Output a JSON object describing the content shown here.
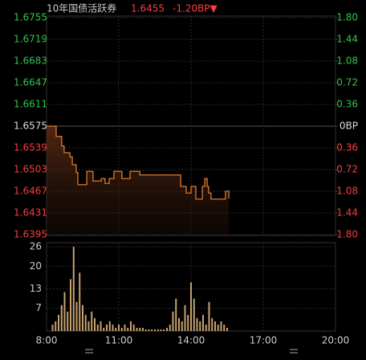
{
  "chart_data": [
    {
      "type": "line",
      "title": "10年国债活跃券",
      "last": "1.6455",
      "change": "-1.20BP▼",
      "x": [
        8.0,
        8.33,
        8.4,
        8.57,
        8.63,
        8.73,
        8.97,
        9.07,
        9.23,
        9.3,
        9.63,
        9.67,
        9.87,
        9.93,
        10.27,
        10.43,
        10.6,
        10.73,
        10.8,
        11.07,
        11.13,
        11.4,
        11.47,
        11.8,
        11.87,
        13.47,
        13.57,
        13.8,
        13.93,
        14.0,
        14.2,
        14.4,
        14.47,
        14.57,
        14.67,
        14.73,
        14.83,
        15.33,
        15.43,
        15.57
      ],
      "values": [
        1.6575,
        1.6575,
        1.6558,
        1.6558,
        1.6542,
        1.6531,
        1.6524,
        1.6511,
        1.6498,
        1.6478,
        1.6478,
        1.65,
        1.65,
        1.6484,
        1.6488,
        1.648,
        1.6488,
        1.6488,
        1.65,
        1.65,
        1.6488,
        1.6488,
        1.65,
        1.65,
        1.6494,
        1.6494,
        1.6475,
        1.6464,
        1.6464,
        1.6475,
        1.6454,
        1.6454,
        1.6475,
        1.6488,
        1.6475,
        1.6464,
        1.6454,
        1.6454,
        1.6467,
        1.6455
      ],
      "color": "#e07a30",
      "base": 1.6575,
      "xlim": [
        8,
        20
      ],
      "ylim": [
        1.6395,
        1.6755
      ],
      "yticks": [
        1.6755,
        1.6719,
        1.6683,
        1.6647,
        1.6611,
        1.6575,
        1.6539,
        1.6503,
        1.6467,
        1.6431,
        1.6395
      ],
      "y2lim": [
        -1.8,
        1.8
      ],
      "y2ticks": [
        {
          "value": 1.8,
          "label": "1.80"
        },
        {
          "value": 1.44,
          "label": "1.44"
        },
        {
          "value": 1.08,
          "label": "1.08"
        },
        {
          "value": 0.72,
          "label": "0.72"
        },
        {
          "value": 0.36,
          "label": "0.36"
        },
        {
          "value": 0,
          "label": "0BP"
        },
        {
          "value": -0.36,
          "label": "0.36"
        },
        {
          "value": -0.72,
          "label": "0.72"
        },
        {
          "value": -1.08,
          "label": "1.08"
        },
        {
          "value": -1.44,
          "label": "1.44"
        },
        {
          "value": -1.8,
          "label": "1.80"
        }
      ],
      "grid": true
    },
    {
      "type": "bar",
      "x": [
        8.25,
        8.375,
        8.5,
        8.625,
        8.75,
        8.875,
        9.0,
        9.125,
        9.25,
        9.375,
        9.5,
        9.625,
        9.75,
        9.875,
        10.0,
        10.125,
        10.25,
        10.375,
        10.5,
        10.625,
        10.75,
        10.875,
        11.0,
        11.125,
        11.25,
        11.375,
        11.5,
        11.625,
        11.75,
        11.875,
        12.0,
        12.125,
        12.25,
        12.375,
        12.5,
        12.625,
        12.75,
        12.875,
        13.0,
        13.125,
        13.25,
        13.375,
        13.5,
        13.625,
        13.75,
        13.875,
        14.0,
        14.125,
        14.25,
        14.375,
        14.5,
        14.625,
        14.75,
        14.875,
        15.0,
        15.125,
        15.25,
        15.375,
        15.5
      ],
      "values": [
        2,
        3,
        5,
        8,
        12,
        6,
        16,
        26,
        9,
        18,
        8,
        5,
        3,
        6,
        4,
        2,
        3,
        1,
        2,
        3,
        2,
        1,
        2,
        1,
        2,
        1,
        3,
        2,
        1,
        1,
        1,
        0.5,
        0.5,
        0.5,
        0.5,
        0.5,
        0.5,
        0.5,
        1,
        2,
        6,
        10,
        4,
        3,
        8,
        5,
        15,
        10,
        4,
        3,
        5,
        2,
        9,
        4,
        3,
        2,
        3,
        2,
        1
      ],
      "color": "#c8a070",
      "xlim": [
        8,
        20
      ],
      "ylim": [
        0,
        27
      ],
      "yticks": [
        26,
        20,
        13,
        7
      ],
      "xticks": [
        {
          "value": 8,
          "label": "8:00"
        },
        {
          "value": 11,
          "label": "11:00"
        },
        {
          "value": 14,
          "label": "14:00"
        },
        {
          "value": 17,
          "label": "17:00"
        },
        {
          "value": 20,
          "label": "20:00"
        }
      ],
      "grid": true
    }
  ]
}
